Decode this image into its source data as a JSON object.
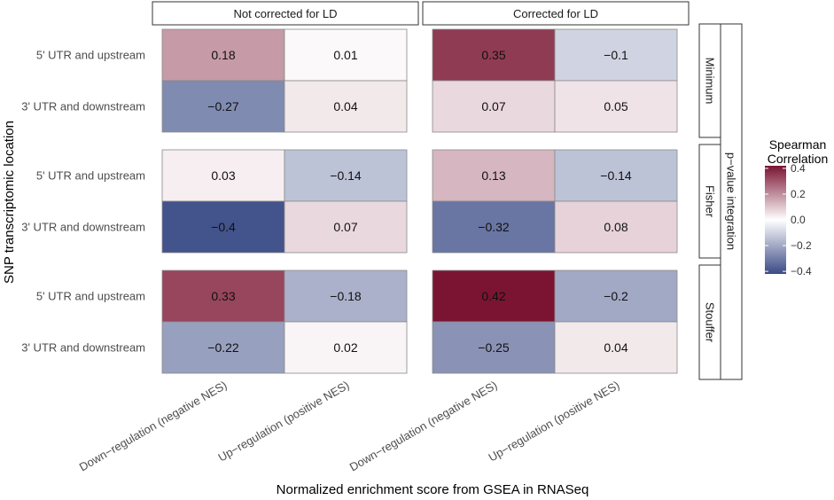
{
  "chart_data": {
    "type": "heatmap",
    "title": "",
    "xlabel": "Normalized enrichment score from GSEA in RNASeq",
    "ylabel": "SNP transcriptomic location",
    "column_facets": [
      "Not corrected for LD",
      "Corrected for LD"
    ],
    "row_facets": [
      "Minimum",
      "Fisher",
      "Stouffer"
    ],
    "outer_row_strip": "p−value integration",
    "x_categories": [
      "Down−regulation (negative NES)",
      "Up−regulation  (positive NES)"
    ],
    "y_categories": [
      "5' UTR and upstream",
      "3' UTR and downstream"
    ],
    "cells": [
      {
        "col_facet": "Not corrected for LD",
        "row_facet": "Minimum",
        "y": "5' UTR and upstream",
        "x": "Down−regulation (negative NES)",
        "value": 0.18,
        "label": "0.18"
      },
      {
        "col_facet": "Not corrected for LD",
        "row_facet": "Minimum",
        "y": "5' UTR and upstream",
        "x": "Up−regulation  (positive NES)",
        "value": 0.01,
        "label": "0.01"
      },
      {
        "col_facet": "Not corrected for LD",
        "row_facet": "Minimum",
        "y": "3' UTR and downstream",
        "x": "Down−regulation (negative NES)",
        "value": -0.27,
        "label": "−0.27"
      },
      {
        "col_facet": "Not corrected for LD",
        "row_facet": "Minimum",
        "y": "3' UTR and downstream",
        "x": "Up−regulation  (positive NES)",
        "value": 0.04,
        "label": "0.04"
      },
      {
        "col_facet": "Corrected for LD",
        "row_facet": "Minimum",
        "y": "5' UTR and upstream",
        "x": "Down−regulation (negative NES)",
        "value": 0.35,
        "label": "0.35"
      },
      {
        "col_facet": "Corrected for LD",
        "row_facet": "Minimum",
        "y": "5' UTR and upstream",
        "x": "Up−regulation  (positive NES)",
        "value": -0.1,
        "label": "−0.1"
      },
      {
        "col_facet": "Corrected for LD",
        "row_facet": "Minimum",
        "y": "3' UTR and downstream",
        "x": "Down−regulation (negative NES)",
        "value": 0.07,
        "label": "0.07"
      },
      {
        "col_facet": "Corrected for LD",
        "row_facet": "Minimum",
        "y": "3' UTR and downstream",
        "x": "Up−regulation  (positive NES)",
        "value": 0.05,
        "label": "0.05"
      },
      {
        "col_facet": "Not corrected for LD",
        "row_facet": "Fisher",
        "y": "5' UTR and upstream",
        "x": "Down−regulation (negative NES)",
        "value": 0.03,
        "label": "0.03"
      },
      {
        "col_facet": "Not corrected for LD",
        "row_facet": "Fisher",
        "y": "5' UTR and upstream",
        "x": "Up−regulation  (positive NES)",
        "value": -0.14,
        "label": "−0.14"
      },
      {
        "col_facet": "Not corrected for LD",
        "row_facet": "Fisher",
        "y": "3' UTR and downstream",
        "x": "Down−regulation (negative NES)",
        "value": -0.4,
        "label": "−0.4"
      },
      {
        "col_facet": "Not corrected for LD",
        "row_facet": "Fisher",
        "y": "3' UTR and downstream",
        "x": "Up−regulation  (positive NES)",
        "value": 0.07,
        "label": "0.07"
      },
      {
        "col_facet": "Corrected for LD",
        "row_facet": "Fisher",
        "y": "5' UTR and upstream",
        "x": "Down−regulation (negative NES)",
        "value": 0.13,
        "label": "0.13"
      },
      {
        "col_facet": "Corrected for LD",
        "row_facet": "Fisher",
        "y": "5' UTR and upstream",
        "x": "Up−regulation  (positive NES)",
        "value": -0.14,
        "label": "−0.14"
      },
      {
        "col_facet": "Corrected for LD",
        "row_facet": "Fisher",
        "y": "3' UTR and downstream",
        "x": "Down−regulation (negative NES)",
        "value": -0.32,
        "label": "−0.32"
      },
      {
        "col_facet": "Corrected for LD",
        "row_facet": "Fisher",
        "y": "3' UTR and downstream",
        "x": "Up−regulation  (positive NES)",
        "value": 0.08,
        "label": "0.08"
      },
      {
        "col_facet": "Not corrected for LD",
        "row_facet": "Stouffer",
        "y": "5' UTR and upstream",
        "x": "Down−regulation (negative NES)",
        "value": 0.33,
        "label": "0.33"
      },
      {
        "col_facet": "Not corrected for LD",
        "row_facet": "Stouffer",
        "y": "5' UTR and upstream",
        "x": "Up−regulation  (positive NES)",
        "value": -0.18,
        "label": "−0.18"
      },
      {
        "col_facet": "Not corrected for LD",
        "row_facet": "Stouffer",
        "y": "3' UTR and downstream",
        "x": "Down−regulation (negative NES)",
        "value": -0.22,
        "label": "−0.22"
      },
      {
        "col_facet": "Not corrected for LD",
        "row_facet": "Stouffer",
        "y": "3' UTR and downstream",
        "x": "Up−regulation  (positive NES)",
        "value": 0.02,
        "label": "0.02"
      },
      {
        "col_facet": "Corrected for LD",
        "row_facet": "Stouffer",
        "y": "5' UTR and upstream",
        "x": "Down−regulation (negative NES)",
        "value": 0.42,
        "label": "0.42"
      },
      {
        "col_facet": "Corrected for LD",
        "row_facet": "Stouffer",
        "y": "5' UTR and upstream",
        "x": "Up−regulation  (positive NES)",
        "value": -0.2,
        "label": "−0.2"
      },
      {
        "col_facet": "Corrected for LD",
        "row_facet": "Stouffer",
        "y": "3' UTR and downstream",
        "x": "Down−regulation (negative NES)",
        "value": -0.25,
        "label": "−0.25"
      },
      {
        "col_facet": "Corrected for LD",
        "row_facet": "Stouffer",
        "y": "3' UTR and downstream",
        "x": "Up−regulation  (positive NES)",
        "value": 0.04,
        "label": "0.04"
      }
    ],
    "legend": {
      "title_lines": [
        "Spearman",
        "Correlation"
      ],
      "range": [
        -0.42,
        0.42
      ],
      "ticks": [
        0.4,
        0.2,
        0.0,
        -0.2,
        -0.4
      ],
      "tick_labels": [
        "0.4",
        "0.2",
        "0.0",
        "−0.2",
        "−0.4"
      ],
      "colors": {
        "low": "#3a4a85",
        "mid": "#ffffff",
        "high": "#7a1432"
      }
    }
  }
}
